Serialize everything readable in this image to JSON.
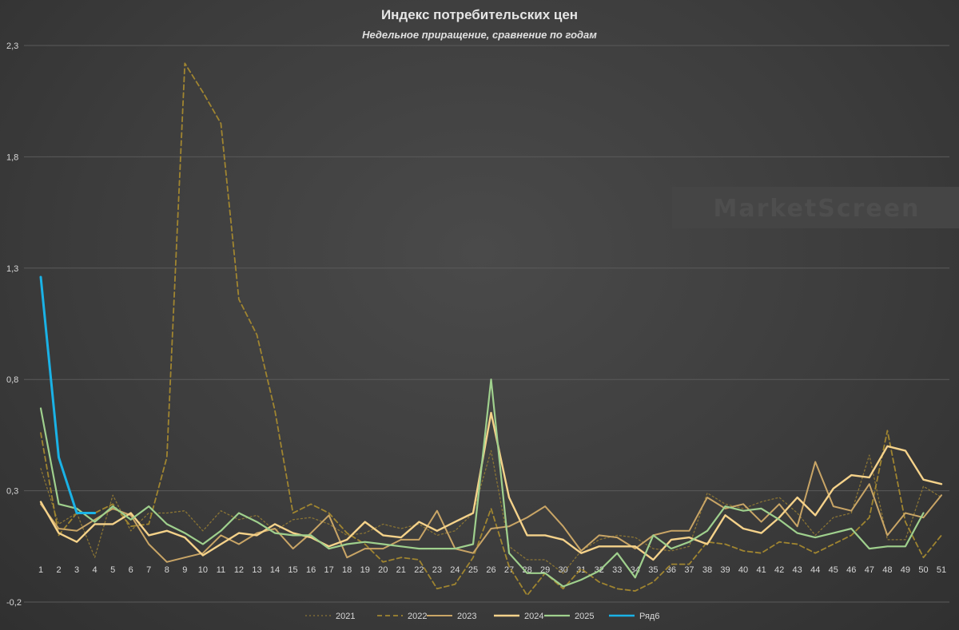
{
  "watermark": "MarketScreen",
  "chart_data": {
    "type": "line",
    "title": "Индекс потребительских цен",
    "subtitle": "Недельное приращение, сравнение по годам",
    "xlabel": "",
    "ylabel": "",
    "x": [
      1,
      2,
      3,
      4,
      5,
      6,
      7,
      8,
      9,
      10,
      11,
      12,
      13,
      14,
      15,
      16,
      17,
      18,
      19,
      20,
      21,
      22,
      23,
      24,
      25,
      26,
      27,
      28,
      29,
      30,
      31,
      32,
      33,
      34,
      35,
      36,
      37,
      38,
      39,
      40,
      41,
      42,
      43,
      44,
      45,
      46,
      47,
      48,
      49,
      50,
      51
    ],
    "ylim": [
      -0.2,
      2.3
    ],
    "yticks": [
      "-0,2",
      "0,3",
      "0,8",
      "1,3",
      "1,8",
      "2,3"
    ],
    "ytick_values": [
      -0.2,
      0.3,
      0.8,
      1.3,
      1.8,
      2.3
    ],
    "grid": true,
    "legend_position": "bottom",
    "series": [
      {
        "name": "2021",
        "color": "#8a7434",
        "dash": "2,3",
        "width": 1.3,
        "values": [
          0.4,
          0.15,
          0.2,
          0.0,
          0.28,
          0.12,
          0.2,
          0.2,
          0.21,
          0.12,
          0.21,
          0.17,
          0.19,
          0.12,
          0.17,
          0.18,
          0.15,
          0.1,
          0.11,
          0.15,
          0.13,
          0.15,
          0.1,
          0.12,
          0.2,
          0.48,
          0.05,
          -0.01,
          -0.01,
          -0.07,
          0.03,
          0.08,
          0.1,
          0.09,
          0.04,
          0.03,
          0.05,
          0.29,
          0.24,
          0.22,
          0.25,
          0.27,
          0.2,
          0.1,
          0.18,
          0.2,
          0.46,
          0.08,
          0.08,
          0.32,
          0.27
        ]
      },
      {
        "name": "2022",
        "color": "#a08530",
        "dash": "6,4",
        "width": 1.8,
        "values": [
          0.56,
          0.1,
          0.2,
          0.2,
          0.24,
          0.14,
          0.15,
          0.45,
          2.22,
          2.09,
          1.95,
          1.16,
          1.0,
          0.66,
          0.2,
          0.24,
          0.2,
          0.11,
          0.06,
          -0.02,
          0.0,
          -0.01,
          -0.14,
          -0.12,
          0.0,
          0.22,
          -0.04,
          -0.17,
          -0.07,
          -0.14,
          -0.05,
          -0.11,
          -0.14,
          -0.15,
          -0.11,
          -0.03,
          -0.03,
          0.07,
          0.06,
          0.03,
          0.02,
          0.07,
          0.06,
          0.02,
          0.06,
          0.1,
          0.18,
          0.57,
          0.16,
          0.0,
          0.1
        ]
      },
      {
        "name": "2023",
        "color": "#c9a566",
        "dash": "",
        "width": 2.0,
        "values": [
          0.24,
          0.13,
          0.12,
          0.17,
          0.22,
          0.19,
          0.06,
          -0.02,
          0.0,
          0.02,
          0.1,
          0.06,
          0.11,
          0.13,
          0.04,
          0.11,
          0.19,
          0.0,
          0.04,
          0.04,
          0.08,
          0.08,
          0.21,
          0.04,
          0.02,
          0.13,
          0.14,
          0.18,
          0.23,
          0.14,
          0.03,
          0.1,
          0.09,
          0.04,
          0.1,
          0.12,
          0.12,
          0.27,
          0.22,
          0.24,
          0.16,
          0.24,
          0.14,
          0.43,
          0.23,
          0.21,
          0.33,
          0.1,
          0.2,
          0.18,
          0.28
        ]
      },
      {
        "name": "2024",
        "color": "#f5d28a",
        "dash": "",
        "width": 2.4,
        "values": [
          0.25,
          0.11,
          0.07,
          0.15,
          0.15,
          0.2,
          0.1,
          0.12,
          0.09,
          0.01,
          0.06,
          0.11,
          0.1,
          0.15,
          0.11,
          0.09,
          0.05,
          0.08,
          0.16,
          0.1,
          0.09,
          0.16,
          0.12,
          0.16,
          0.2,
          0.65,
          0.27,
          0.1,
          0.1,
          0.08,
          0.02,
          0.05,
          0.05,
          0.05,
          -0.01,
          0.08,
          0.09,
          0.06,
          0.19,
          0.13,
          0.11,
          0.18,
          0.27,
          0.19,
          0.31,
          0.37,
          0.36,
          0.5,
          0.48,
          0.35,
          0.33
        ]
      },
      {
        "name": "2025",
        "color": "#9fd08d",
        "dash": "",
        "width": 2.2,
        "values": [
          0.67,
          0.24,
          0.22,
          0.16,
          0.23,
          0.17,
          0.23,
          0.15,
          0.11,
          0.06,
          0.12,
          0.2,
          0.16,
          0.11,
          0.1,
          0.1,
          0.04,
          0.06,
          0.07,
          0.06,
          0.05,
          0.04,
          0.04,
          0.04,
          0.06,
          0.8,
          0.02,
          -0.07,
          -0.07,
          -0.13,
          -0.1,
          -0.06,
          0.02,
          -0.09,
          0.1,
          0.04,
          0.07,
          0.12,
          0.23,
          0.21,
          0.22,
          0.17,
          0.11,
          0.09,
          0.11,
          0.13,
          0.04,
          0.05,
          0.05,
          0.2,
          null
        ]
      },
      {
        "name": "Ряд6",
        "color": "#1ab2e6",
        "dash": "",
        "width": 3.0,
        "values": [
          1.26,
          0.45,
          0.2,
          0.2,
          null,
          null,
          null,
          null,
          null,
          null,
          null,
          null,
          null,
          null,
          null,
          null,
          null,
          null,
          null,
          null,
          null,
          null,
          null,
          null,
          null,
          null,
          null,
          null,
          null,
          null,
          null,
          null,
          null,
          null,
          null,
          null,
          null,
          null,
          null,
          null,
          null,
          null,
          null,
          null,
          null,
          null,
          null,
          null,
          null,
          null,
          null
        ]
      }
    ]
  }
}
